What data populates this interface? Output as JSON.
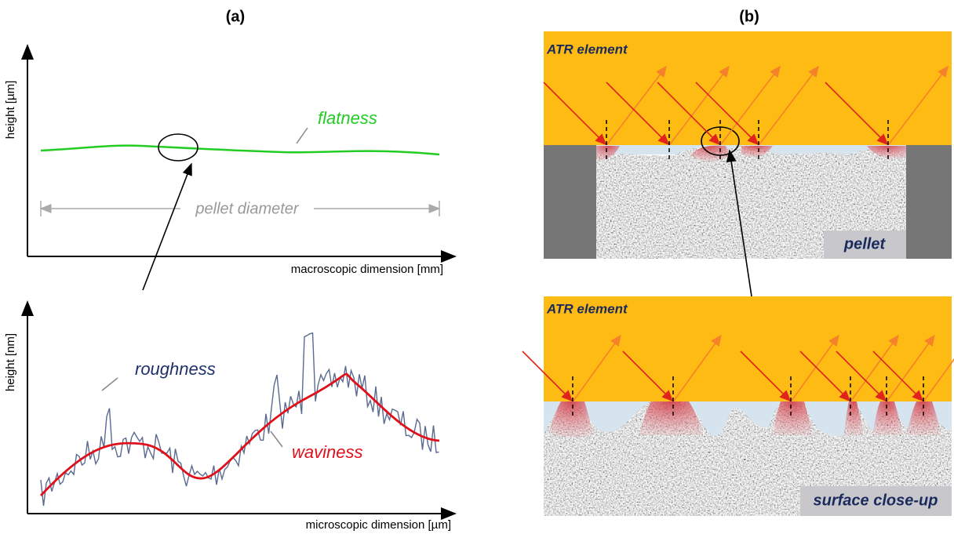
{
  "panel_a": {
    "label": "(a)",
    "top": {
      "y_axis": "height [µm]",
      "x_axis": "macroscopic dimension [mm]",
      "curve_label": "flatness",
      "span_label": "pellet diameter"
    },
    "bottom": {
      "y_axis": "height [nm]",
      "x_axis": "microscopic dimension [µm]",
      "roughness_label": "roughness",
      "waviness_label": "waviness"
    }
  },
  "panel_b": {
    "label": "(b)",
    "top": {
      "element_label": "ATR element",
      "sample_label": "pellet"
    },
    "bottom": {
      "element_label": "ATR element",
      "sample_label": "surface close-up"
    }
  }
}
